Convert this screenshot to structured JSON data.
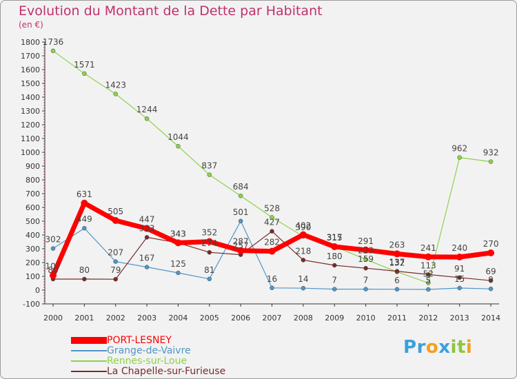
{
  "chart_data": {
    "type": "line",
    "title": "Evolution du Montant de la Dette par Habitant",
    "unit_label": "(en €)",
    "x": [
      "2000",
      "2001",
      "2002",
      "2003",
      "2004",
      "2005",
      "2006",
      "2007",
      "2008",
      "2009",
      "2010",
      "2011",
      "2012",
      "2013",
      "2014"
    ],
    "ylim": [
      -100,
      1800
    ],
    "yticks": [
      -100,
      0,
      100,
      200,
      300,
      400,
      500,
      600,
      700,
      800,
      900,
      1000,
      1100,
      1200,
      1300,
      1400,
      1500,
      1600,
      1700,
      1800
    ],
    "grid": false,
    "legend_position": "bottom-left",
    "series": [
      {
        "name": "PORT-LESNEY",
        "color": "#ff0000",
        "values": [
          107,
          631,
          505,
          447,
          343,
          352,
          287,
          282,
          402,
          315,
          291,
          263,
          241,
          240,
          270
        ]
      },
      {
        "name": "Grange-de-Vaivre",
        "color": "#4e96c8",
        "values": [
          302,
          449,
          207,
          167,
          125,
          81,
          501,
          16,
          14,
          7,
          7,
          6,
          5,
          15,
          9
        ]
      },
      {
        "name": "Rennes-sur-Loue",
        "color": "#8cd24a",
        "values": [
          1736,
          1571,
          1423,
          1244,
          1044,
          837,
          684,
          528,
          390,
          317,
          223,
          132,
          52,
          962,
          932
        ]
      },
      {
        "name": "La Chapelle-sur-Furieuse",
        "color": "#7a2a2a",
        "values": [
          80,
          80,
          79,
          383,
          343,
          274,
          257,
          427,
          218,
          180,
          159,
          137,
          113,
          91,
          69
        ]
      }
    ]
  },
  "logo": {
    "letters": [
      "P",
      "r",
      "o",
      "x",
      "i",
      "t",
      "i"
    ],
    "colors": [
      "#3aa0dc",
      "#3aa0dc",
      "#f0a020",
      "#3aa0dc",
      "#8cc63f",
      "#8cc63f",
      "#f0a020"
    ]
  }
}
